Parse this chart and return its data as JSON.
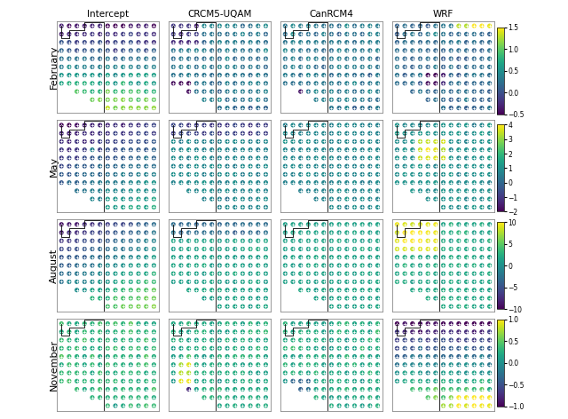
{
  "columns": [
    "Intercept",
    "CRCM5-UQAM",
    "CanRCM4",
    "WRF"
  ],
  "rows": [
    "February",
    "May",
    "August",
    "November"
  ],
  "colorbar_ranges": {
    "February": [
      -0.5,
      1.5
    ],
    "May": [
      -2,
      4
    ],
    "August": [
      -10,
      10
    ],
    "November": [
      -1.0,
      1.0
    ]
  },
  "colorbar_ticks": {
    "February": [
      -0.5,
      0.0,
      0.5,
      1.0,
      1.5
    ],
    "May": [
      -2,
      -1,
      0,
      1,
      2,
      3,
      4
    ],
    "August": [
      -10,
      -5,
      0,
      5,
      10
    ],
    "November": [
      -1.0,
      -0.5,
      0.0,
      0.5,
      1.0
    ]
  },
  "grid_cols": 13,
  "grid_rows": 11
}
